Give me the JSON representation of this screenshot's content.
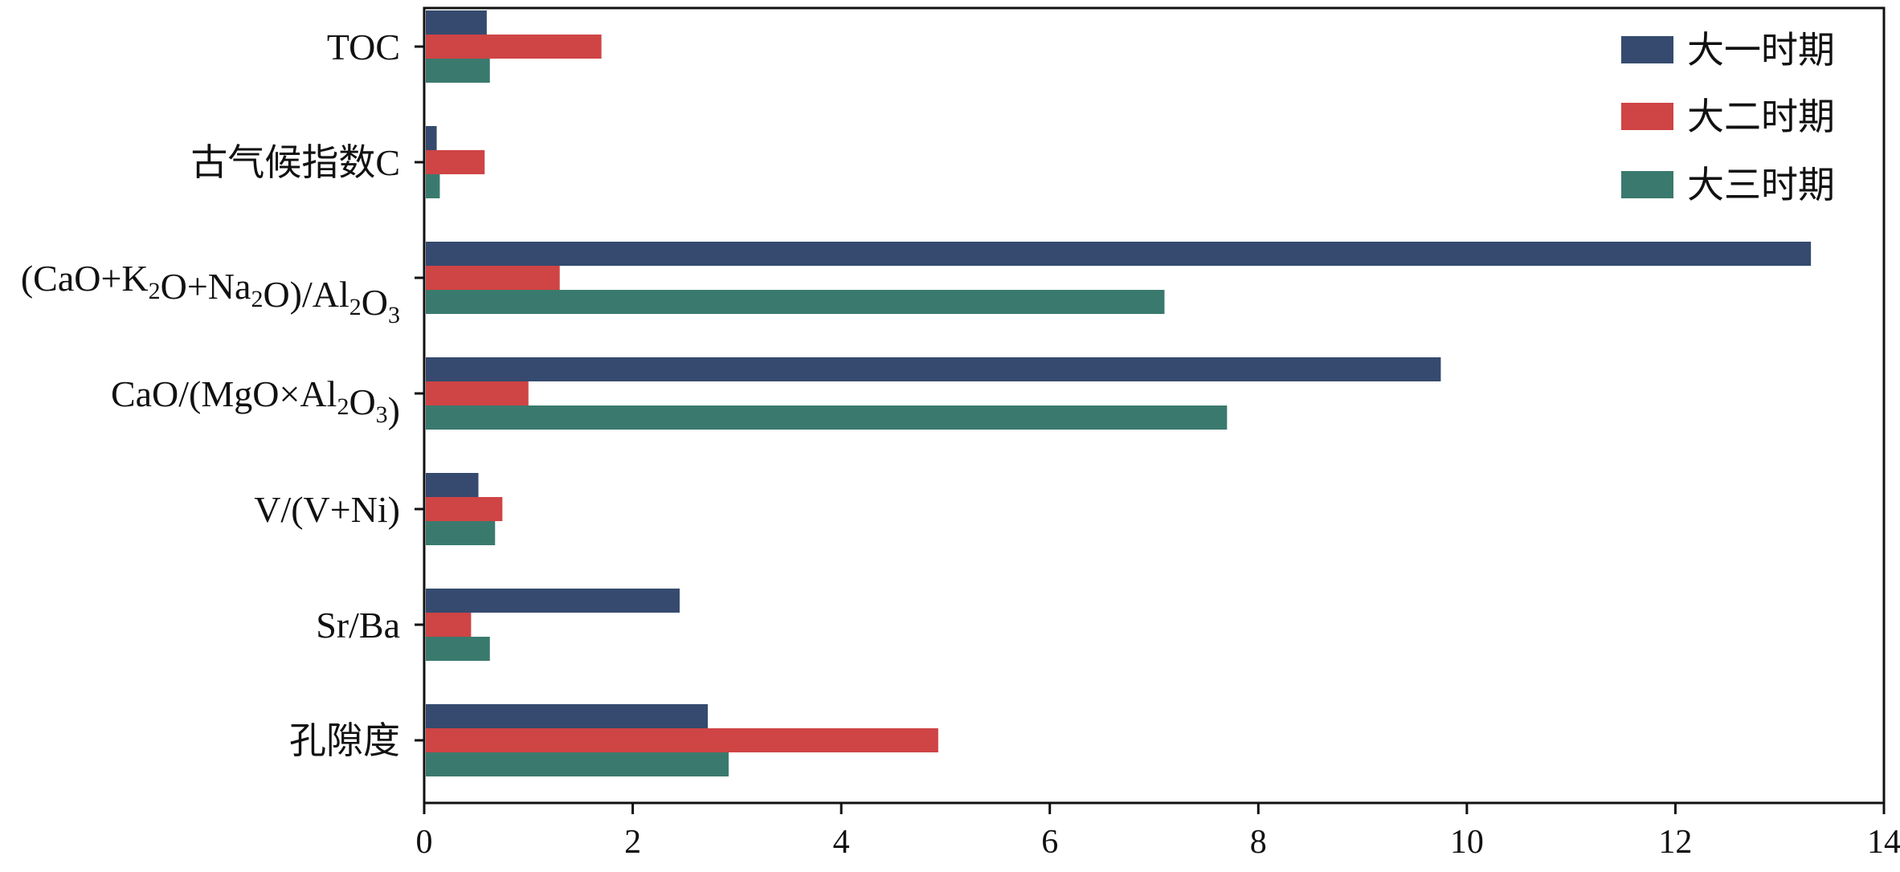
{
  "chart_data": {
    "type": "bar",
    "orientation": "horizontal",
    "title": "",
    "xlabel": "",
    "ylabel": "",
    "xlim": [
      0,
      14
    ],
    "xticks": [
      0,
      2,
      4,
      6,
      8,
      10,
      12,
      14
    ],
    "grid": false,
    "legend_position": "top-right",
    "categories": [
      "TOC",
      "古气候指数C",
      "(CaO+K2O+Na2O)/Al2O3",
      "CaO/(MgO×Al2O3)",
      "V/(V+Ni)",
      "Sr/Ba",
      "孔隙度"
    ],
    "series": [
      {
        "name": "大一时期",
        "color": "#354a6e",
        "values": [
          0.6,
          0.12,
          13.3,
          9.75,
          0.52,
          2.45,
          2.72
        ]
      },
      {
        "name": "大二时期",
        "color": "#cf4445",
        "values": [
          1.7,
          0.58,
          1.3,
          1.0,
          0.75,
          0.45,
          4.93
        ]
      },
      {
        "name": "大三时期",
        "color": "#3a7a6e",
        "values": [
          0.63,
          0.15,
          7.1,
          7.7,
          0.68,
          0.63,
          2.92
        ]
      }
    ]
  }
}
